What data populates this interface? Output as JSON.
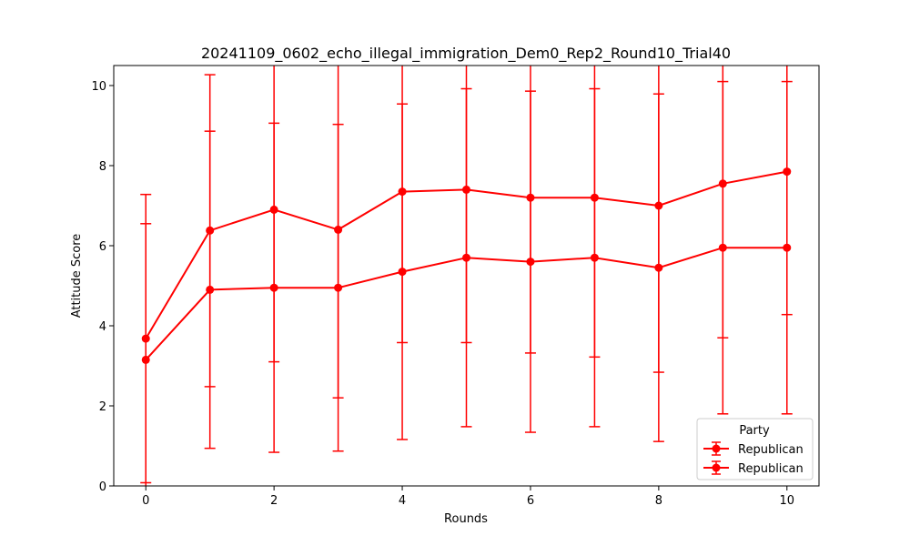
{
  "chart_data": {
    "type": "line",
    "title": "20241109_0602_echo_illegal_immigration_Dem0_Rep2_Round10_Trial40",
    "xlabel": "Rounds",
    "ylabel": "Attitude Score",
    "xlim": [
      -0.5,
      10.5
    ],
    "ylim": [
      0,
      10.5
    ],
    "xticks": [
      0,
      2,
      4,
      6,
      8,
      10
    ],
    "yticks": [
      0,
      2,
      4,
      6,
      8,
      10
    ],
    "grid": false,
    "legend": {
      "title": "Party",
      "placement": "lower-right"
    },
    "x": [
      0,
      1,
      2,
      3,
      4,
      5,
      6,
      7,
      8,
      9,
      10
    ],
    "series": [
      {
        "name": "Republican",
        "color": "#ff0000",
        "values": [
          3.68,
          6.38,
          6.9,
          6.4,
          7.35,
          7.4,
          7.2,
          7.2,
          7.0,
          7.55,
          7.85
        ],
        "err_low": [
          0.08,
          2.48,
          3.1,
          2.2,
          3.58,
          3.58,
          3.32,
          3.22,
          2.84,
          3.7,
          4.28
        ],
        "err_high": [
          7.28,
          10.27,
          10.7,
          10.6,
          11.12,
          11.22,
          11.08,
          11.18,
          11.16,
          11.4,
          11.42
        ]
      },
      {
        "name": "Republican",
        "color": "#ff0000",
        "values": [
          3.15,
          4.9,
          4.95,
          4.95,
          5.35,
          5.7,
          5.6,
          5.7,
          5.45,
          5.95,
          5.95
        ],
        "err_low": [
          -0.25,
          0.94,
          0.84,
          0.87,
          1.16,
          1.48,
          1.34,
          1.48,
          1.11,
          1.8,
          1.8
        ],
        "err_high": [
          6.55,
          8.86,
          9.06,
          9.03,
          9.54,
          9.92,
          9.86,
          9.92,
          9.79,
          10.1,
          10.1
        ]
      }
    ]
  }
}
